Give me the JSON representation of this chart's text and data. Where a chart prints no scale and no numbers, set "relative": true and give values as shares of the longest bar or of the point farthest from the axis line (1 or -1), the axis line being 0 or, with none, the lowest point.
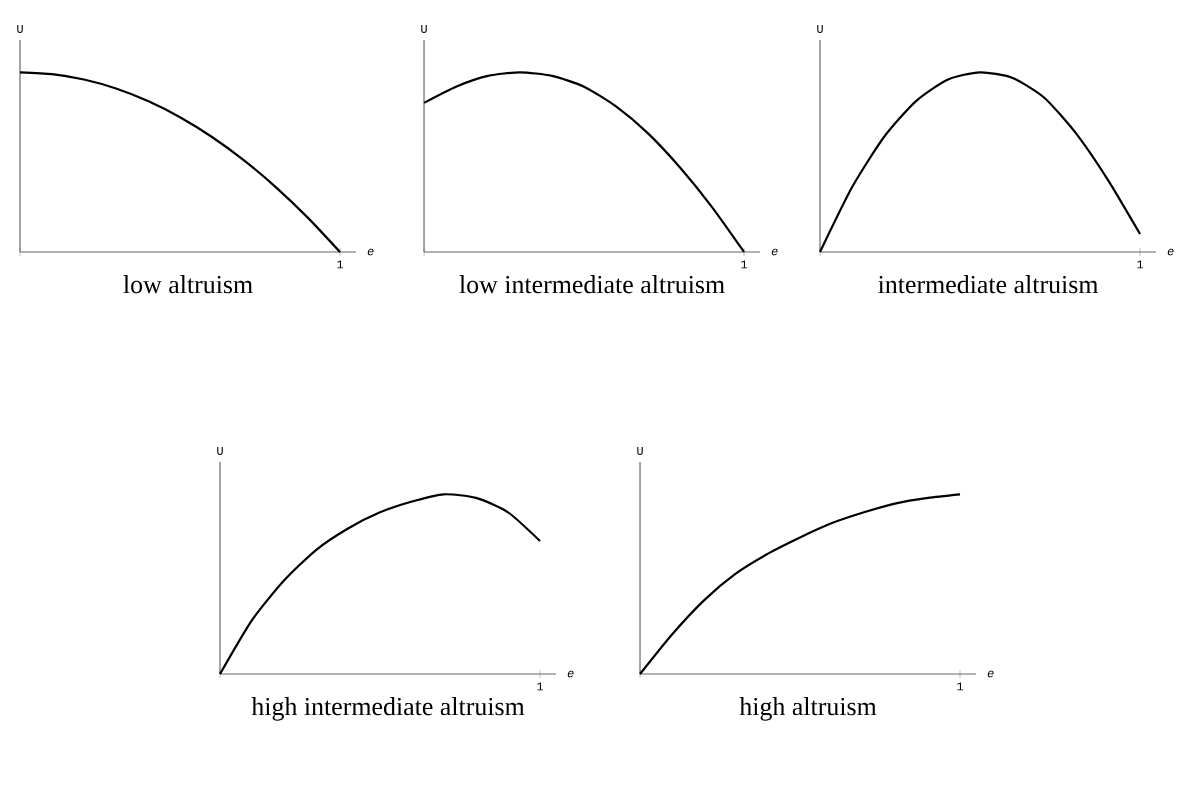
{
  "chart_data": [
    {
      "type": "line",
      "title": "low altruism",
      "xlabel": "e",
      "ylabel": "U",
      "relative": true,
      "color": "#000000",
      "annotations": [
        "1"
      ],
      "categories": [
        null,
        null,
        null,
        null,
        null,
        null,
        null,
        null,
        null,
        null,
        null
      ],
      "values": [
        1,
        0.99,
        0.96,
        0.91,
        0.84,
        0.75,
        0.64,
        0.51,
        0.36,
        0.19,
        0
      ]
    },
    {
      "type": "line",
      "title": "low intermediate altruism",
      "xlabel": "e",
      "ylabel": "U",
      "relative": true,
      "color": "#000000",
      "annotations": [
        "1"
      ],
      "categories": [
        null,
        null,
        null,
        null,
        null,
        null,
        null,
        null,
        null,
        null,
        null
      ],
      "values": [
        0.83,
        0.92,
        0.98,
        1.0,
        0.98,
        0.92,
        0.81,
        0.66,
        0.47,
        0.25,
        0
      ]
    },
    {
      "type": "line",
      "title": "intermediate altruism",
      "xlabel": "e",
      "ylabel": "U",
      "relative": true,
      "color": "#000000",
      "annotations": [
        "1"
      ],
      "categories": [
        null,
        null,
        null,
        null,
        null,
        null,
        null,
        null,
        null,
        null,
        null
      ],
      "values": [
        0,
        0.36,
        0.64,
        0.84,
        0.96,
        1.0,
        0.97,
        0.86,
        0.66,
        0.4,
        0.1
      ]
    },
    {
      "type": "line",
      "title": "high intermediate altruism",
      "xlabel": "e",
      "ylabel": "U",
      "relative": true,
      "color": "#000000",
      "annotations": [
        "1"
      ],
      "categories": [
        null,
        null,
        null,
        null,
        null,
        null,
        null,
        null,
        null,
        null,
        null
      ],
      "values": [
        0,
        0.3,
        0.52,
        0.69,
        0.81,
        0.9,
        0.96,
        1.0,
        0.98,
        0.9,
        0.74
      ]
    },
    {
      "type": "line",
      "title": "high altruism",
      "xlabel": "e",
      "ylabel": "U",
      "relative": true,
      "color": "#000000",
      "annotations": [
        "1"
      ],
      "categories": [
        null,
        null,
        null,
        null,
        null,
        null,
        null,
        null,
        null,
        null,
        null
      ],
      "values": [
        0,
        0.22,
        0.41,
        0.56,
        0.67,
        0.76,
        0.84,
        0.9,
        0.95,
        0.98,
        1.0
      ]
    }
  ]
}
